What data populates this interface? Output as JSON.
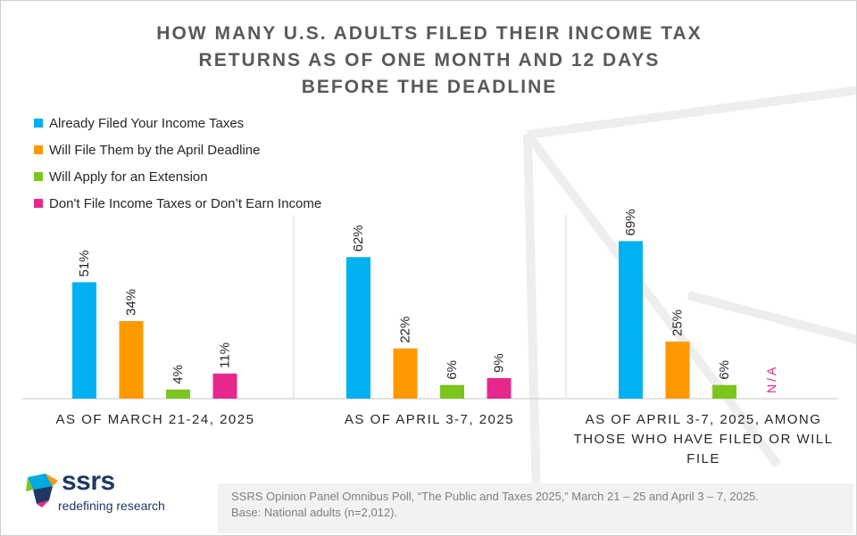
{
  "title_lines": [
    "HOW MANY U.S. ADULTS FILED THEIR INCOME TAX",
    "RETURNS AS OF ONE MONTH AND 12 DAYS",
    "BEFORE THE DEADLINE"
  ],
  "colors": {
    "already_filed": "#00b0f0",
    "will_file": "#ff9900",
    "extension": "#7cc51f",
    "dont_file": "#e6288c",
    "axis": "#d9d9d9",
    "label": "#262626"
  },
  "logo": {
    "name": "ssrs",
    "tagline": "redefining research",
    "icon": "ssrs-flag-logo"
  },
  "footer": {
    "line1": "SSRS Opinion Panel Omnibus Poll, “The Public and Taxes 2025,” March 21 – 25 and April 3 – 7, 2025.",
    "line2": "Base: National adults (n=2,012)."
  },
  "chart_data": {
    "type": "bar",
    "title": "HOW MANY U.S. ADULTS FILED THEIR INCOME TAX RETURNS AS OF ONE MONTH AND 12 DAYS BEFORE THE DEADLINE",
    "categories": [
      "AS OF MARCH 21-24, 2025",
      "AS OF APRIL 3-7, 2025",
      "AS OF APRIL 3-7, 2025, AMONG THOSE WHO HAVE FILED OR WILL FILE"
    ],
    "category_lines": [
      [
        "AS OF MARCH 21-24, 2025"
      ],
      [
        "AS OF APRIL 3-7, 2025"
      ],
      [
        "AS OF APRIL 3-7, 2025, AMONG",
        "THOSE WHO HAVE FILED OR WILL",
        "FILE"
      ]
    ],
    "series": [
      {
        "name": "Already Filed Your Income Taxes",
        "values": [
          51,
          62,
          69
        ],
        "labels": [
          "51%",
          "62%",
          "69%"
        ],
        "color": "#00b0f0"
      },
      {
        "name": "Will File Them by the April Deadline",
        "values": [
          34,
          22,
          25
        ],
        "labels": [
          "34%",
          "22%",
          "25%"
        ],
        "color": "#ff9900"
      },
      {
        "name": "Will Apply for an Extension",
        "values": [
          4,
          6,
          6
        ],
        "labels": [
          "4%",
          "6%",
          "6%"
        ],
        "color": "#7cc51f"
      },
      {
        "name": "Don't File Income Taxes or Don’t Earn Income",
        "values": [
          11,
          9,
          null
        ],
        "labels": [
          "11%",
          "9%",
          "N/A"
        ],
        "color": "#e6288c"
      }
    ],
    "ylim": [
      0,
      80
    ],
    "legend_position": "top-left",
    "grid": false,
    "xlabel": "",
    "ylabel": ""
  }
}
